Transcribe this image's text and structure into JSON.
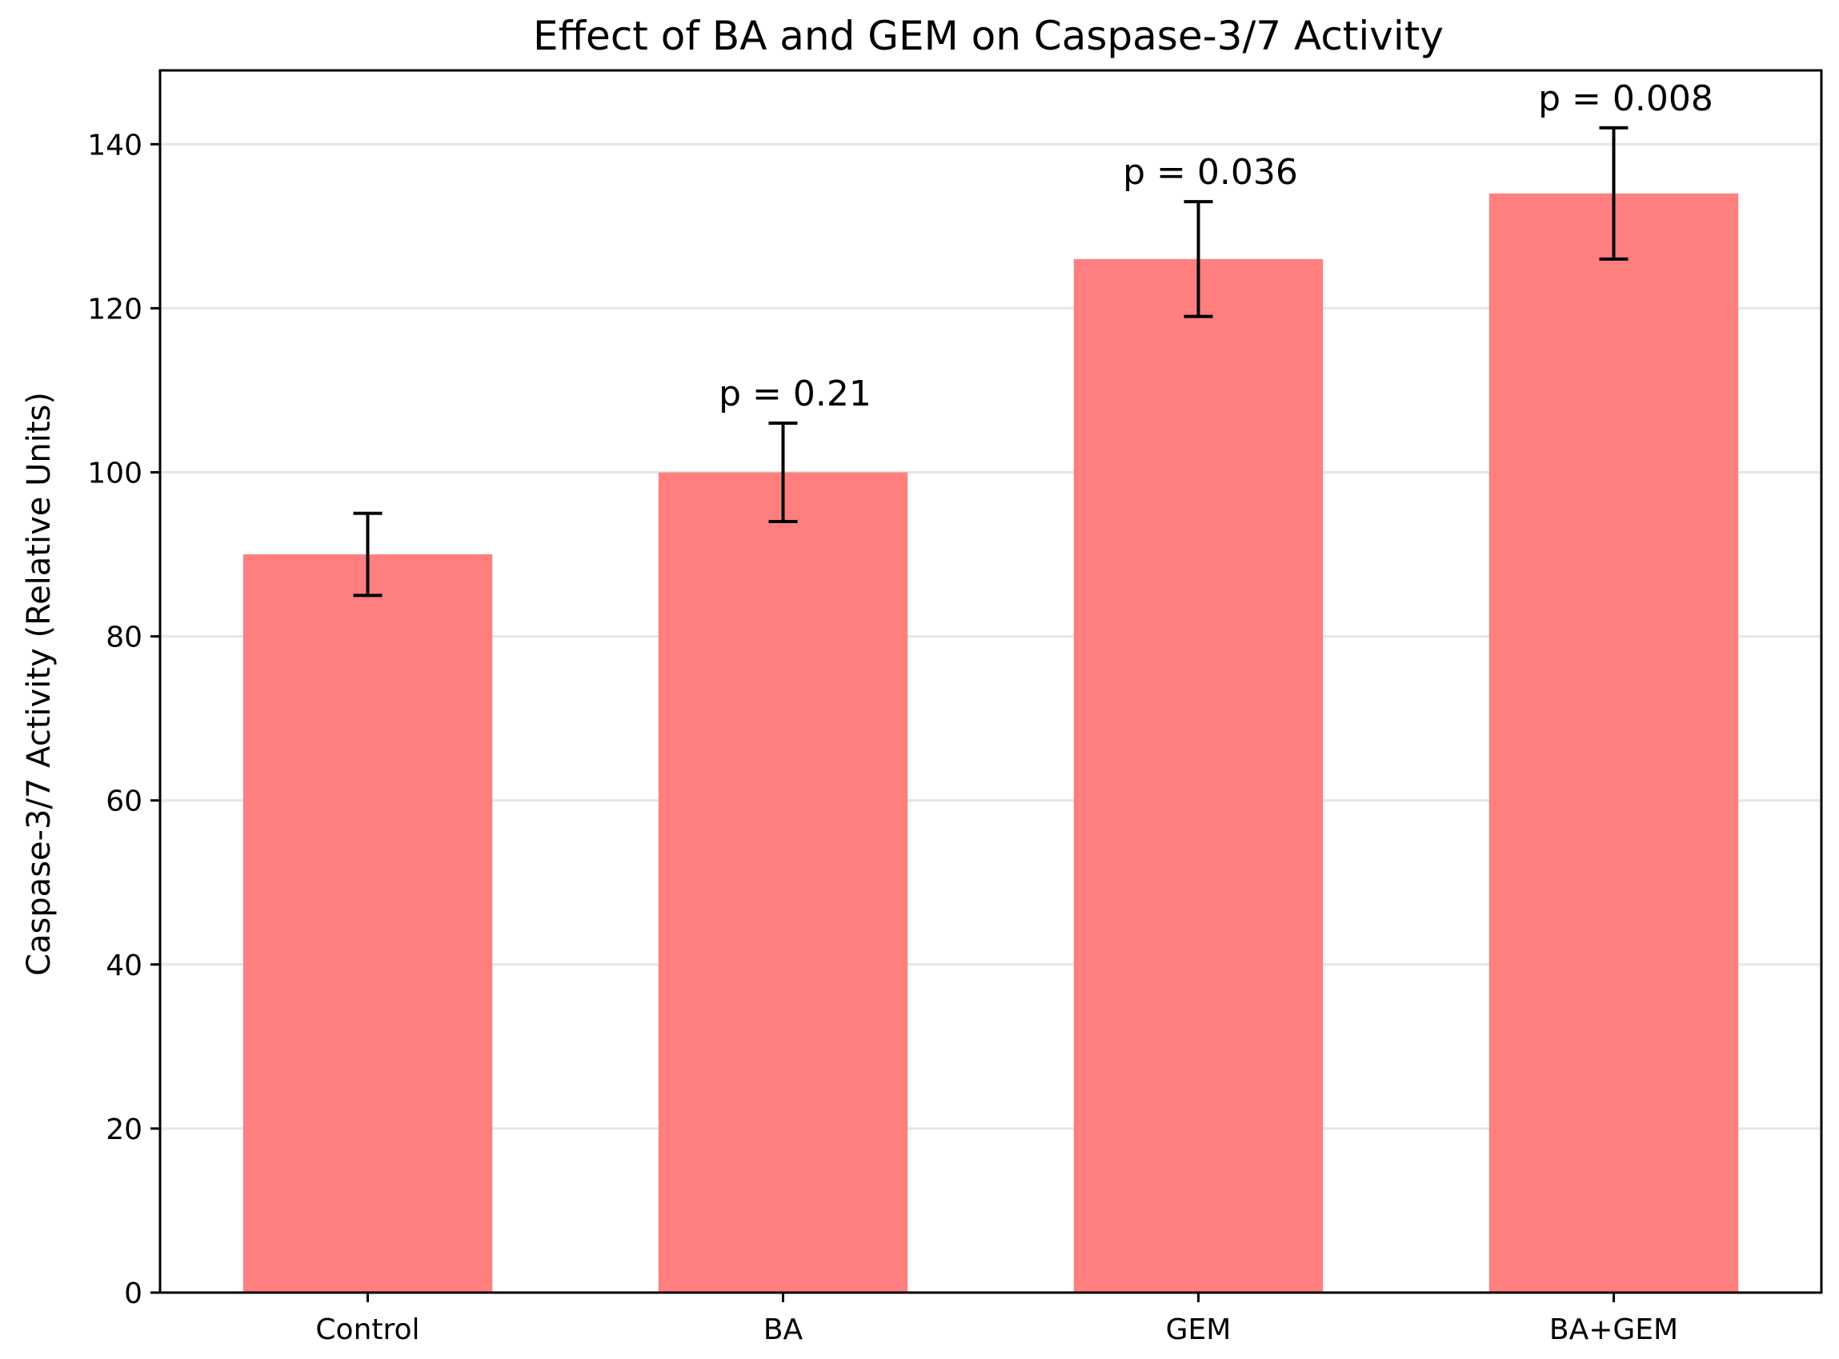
{
  "colors": {
    "bar": "#ff7f7f",
    "grid": "#e6e6e6",
    "axis": "#000000",
    "errorbar": "#000000",
    "background": "#ffffff"
  },
  "chart_data": {
    "type": "bar",
    "title": "Effect of BA and GEM on Caspase-3/7 Activity",
    "xlabel": "",
    "ylabel": "Caspase-3/7 Activity (Relative Units)",
    "categories": [
      "Control",
      "BA",
      "GEM",
      "BA+GEM"
    ],
    "values": [
      90,
      100,
      126,
      134
    ],
    "errors": [
      5,
      6,
      7,
      8
    ],
    "annotations": [
      "",
      "p = 0.21",
      "p = 0.036",
      "p = 0.008"
    ],
    "ylim": [
      0,
      149
    ],
    "yticks": [
      0,
      20,
      40,
      60,
      80,
      100,
      120,
      140
    ],
    "grid": "horizontal",
    "legend": "none"
  }
}
